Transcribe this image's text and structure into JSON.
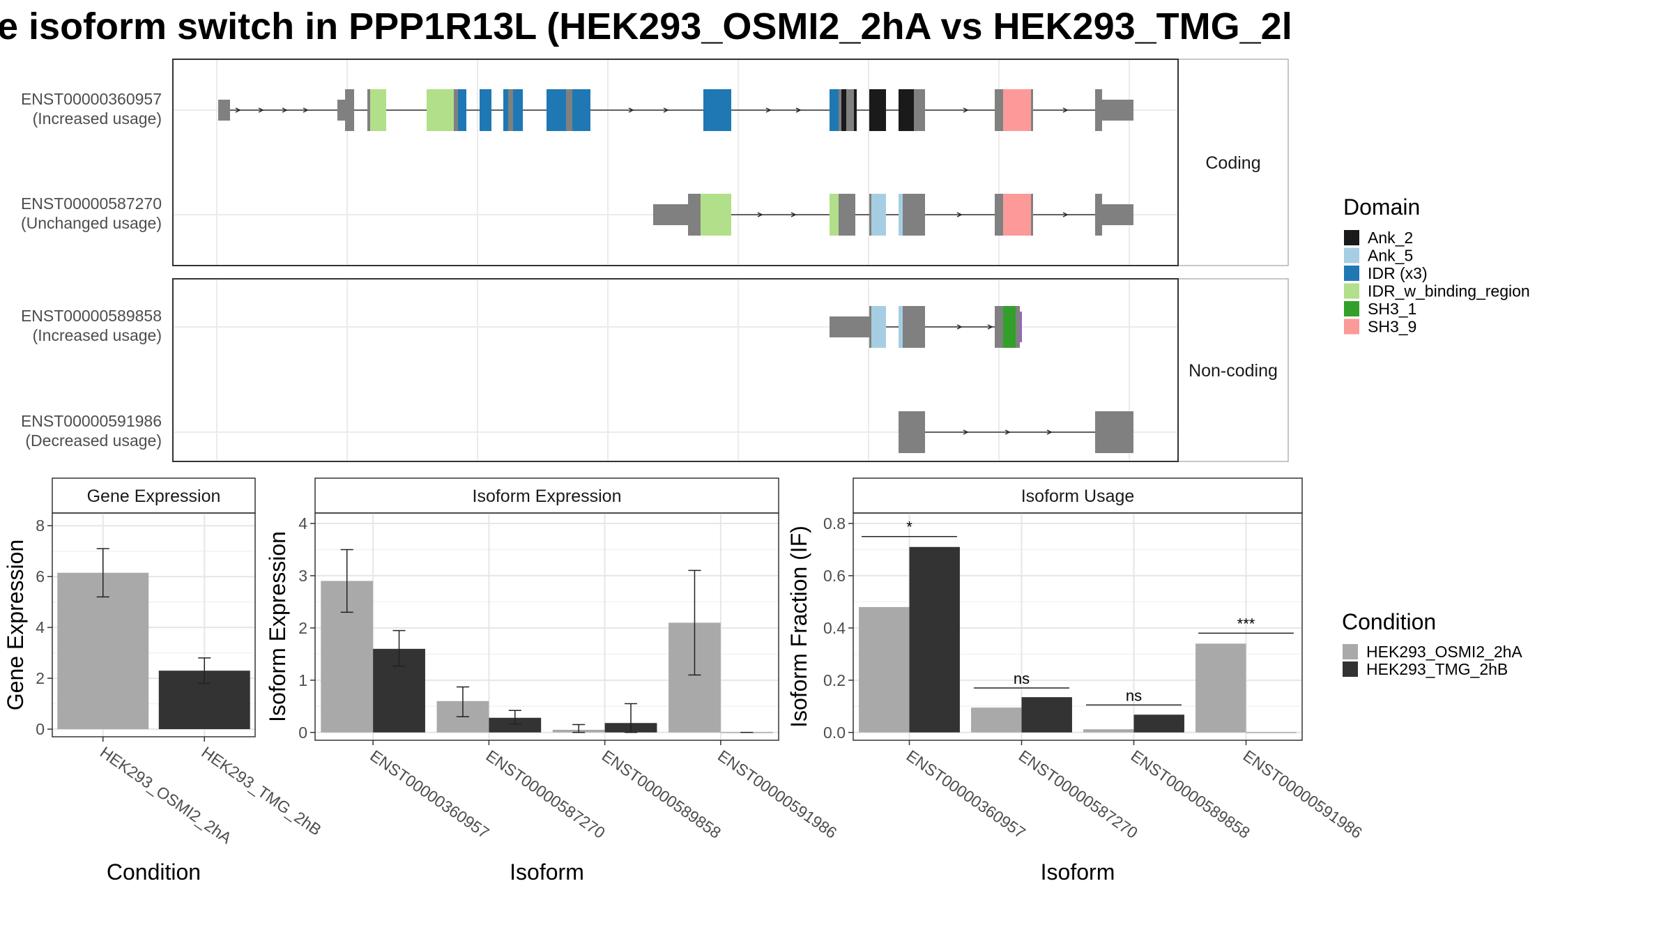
{
  "title": "e isoform switch in PPP1R13L (HEK293_OSMI2_2hA vs HEK293_TMG_2l",
  "colors": {
    "Ank_2": "#1a1a1a",
    "Ank_5": "#a6cee3",
    "IDR (x3)": "#1f78b4",
    "IDR_w_binding_region": "#b2df8a",
    "SH3_1": "#33a02c",
    "SH3_9": "#fb9a99",
    "noncoding": "#808080",
    "purple": "#9467bd",
    "cond1": "#a9a9a9",
    "cond2": "#333333"
  },
  "structure": {
    "facets": [
      "Coding",
      "Non-coding"
    ],
    "isoforms": [
      {
        "id": "ENST00000360957",
        "usage": "(Increased usage)"
      },
      {
        "id": "ENST00000587270",
        "usage": "(Unchanged usage)"
      },
      {
        "id": "ENST00000589858",
        "usage": "(Increased usage)"
      },
      {
        "id": "ENST00000591986",
        "usage": "(Decreased usage)"
      }
    ]
  },
  "legend": {
    "domain_title": "Domain",
    "domains": [
      "Ank_2",
      "Ank_5",
      "IDR (x3)",
      "IDR_w_binding_region",
      "SH3_1",
      "SH3_9"
    ],
    "condition_title": "Condition",
    "conditions": [
      "HEK293_OSMI2_2hA",
      "HEK293_TMG_2hB"
    ]
  },
  "chart_data": [
    {
      "type": "bar",
      "title": "Gene Expression",
      "xlabel": "Condition",
      "ylabel": "Gene Expression",
      "categories": [
        "HEK293_OSMI2_2hA",
        "HEK293_TMG_2hB"
      ],
      "values": [
        6.15,
        2.3
      ],
      "errors": [
        [
          5.2,
          7.1
        ],
        [
          1.8,
          2.8
        ]
      ],
      "ylim": [
        -0.3,
        8.5
      ],
      "yticks": [
        0,
        2,
        4,
        6,
        8
      ],
      "grid": true
    },
    {
      "type": "bar",
      "title": "Isoform Expression",
      "xlabel": "Isoform",
      "ylabel": "Isoform Expression",
      "categories": [
        "ENST00000360957",
        "ENST00000587270",
        "ENST00000589858",
        "ENST00000591986"
      ],
      "series": [
        {
          "name": "HEK293_OSMI2_2hA",
          "values": [
            2.9,
            0.6,
            0.05,
            2.1
          ],
          "errors": [
            [
              2.3,
              3.5
            ],
            [
              0.3,
              0.87
            ],
            [
              0,
              0.15
            ],
            [
              1.1,
              3.1
            ]
          ]
        },
        {
          "name": "HEK293_TMG_2hB",
          "values": [
            1.6,
            0.28,
            0.18,
            0.0
          ],
          "errors": [
            [
              1.27,
              1.95
            ],
            [
              0.16,
              0.42
            ],
            [
              0,
              0.55
            ],
            [
              0,
              0
            ]
          ]
        }
      ],
      "ylim": [
        -0.15,
        4.2
      ],
      "yticks": [
        0,
        1,
        2,
        3,
        4
      ],
      "grid": true
    },
    {
      "type": "bar",
      "title": "Isoform Usage",
      "xlabel": "Isoform",
      "ylabel": "Isoform Fraction (IF)",
      "categories": [
        "ENST00000360957",
        "ENST00000587270",
        "ENST00000589858",
        "ENST00000591986"
      ],
      "series": [
        {
          "name": "HEK293_OSMI2_2hA",
          "values": [
            0.48,
            0.095,
            0.012,
            0.34
          ]
        },
        {
          "name": "HEK293_TMG_2hB",
          "values": [
            0.71,
            0.135,
            0.068,
            0.0
          ]
        }
      ],
      "significance": [
        "*",
        "ns",
        "ns",
        "***"
      ],
      "sig_levels": [
        0.75,
        0.17,
        0.105,
        0.38
      ],
      "ylim": [
        -0.03,
        0.84
      ],
      "yticks": [
        0.0,
        0.2,
        0.4,
        0.6,
        0.8
      ],
      "ytick_labels": [
        "0.0",
        "0.2",
        "0.4",
        "0.6",
        "0.8"
      ],
      "grid": true
    }
  ]
}
